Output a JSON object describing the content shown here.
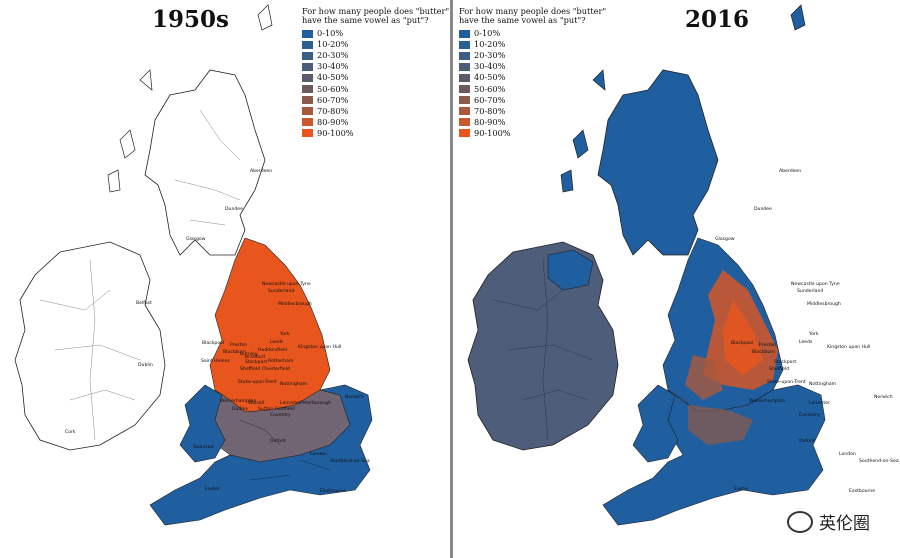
{
  "left_panel": {
    "year": "1950s",
    "legend_title": "For how many people does \"butter\" have the same vowel as \"put\"?"
  },
  "right_panel": {
    "year": "2016",
    "legend_title": "For how many people does \"butter\" have the same vowel as \"put\"?"
  },
  "legend": [
    {
      "label": "0-10%",
      "color": "#1f5fa0"
    },
    {
      "label": "10-20%",
      "color": "#2b5f92"
    },
    {
      "label": "20-30%",
      "color": "#3a5e86"
    },
    {
      "label": "30-40%",
      "color": "#4a5d79"
    },
    {
      "label": "40-50%",
      "color": "#5b5b6c"
    },
    {
      "label": "50-60%",
      "color": "#6f5a5c"
    },
    {
      "label": "60-70%",
      "color": "#8a5a4c"
    },
    {
      "label": "70-80%",
      "color": "#a8593d"
    },
    {
      "label": "80-90%",
      "color": "#c9582d"
    },
    {
      "label": "90-100%",
      "color": "#e8561e"
    }
  ],
  "cities_left": [
    "Aberdeen",
    "Dundee",
    "Glasgow",
    "Newcastle upon Tyne",
    "Sunderland",
    "Middlesbrough",
    "Belfast",
    "York",
    "Leeds",
    "Kingston upon Hull",
    "Blackpool",
    "Preston",
    "Blackburn",
    "Burnley",
    "Huddersfield",
    "Bradford",
    "Saint Helens",
    "Stockport",
    "Rotherham",
    "Sheffield",
    "Chesterfield",
    "Dublin",
    "Stoke-upon-Trent",
    "Nottingham",
    "Wolverhampton",
    "Walsall",
    "Leicester",
    "Dudley",
    "Sutton Coldfield",
    "Peterborough",
    "Norwich",
    "Coventry",
    "Cork",
    "Oxford",
    "Swansea",
    "London",
    "Southend-on-Sea",
    "Exeter",
    "Eastbourne"
  ],
  "cities_right": [
    "Aberdeen",
    "Dundee",
    "Glasgow",
    "Newcastle upon Tyne",
    "Sunderland",
    "Middlesbrough",
    "York",
    "Leeds",
    "Kingston upon Hull",
    "Blackpool",
    "Preston",
    "Blackburn",
    "Stockport",
    "Sheffield",
    "Stoke-upon-Trent",
    "Nottingham",
    "Wolverhampton",
    "Leicester",
    "Coventry",
    "Norwich",
    "Oxford",
    "London",
    "Southend-on-Sea",
    "Eastbourne",
    "Exeter"
  ],
  "watermark": {
    "text": "英伦圈"
  }
}
